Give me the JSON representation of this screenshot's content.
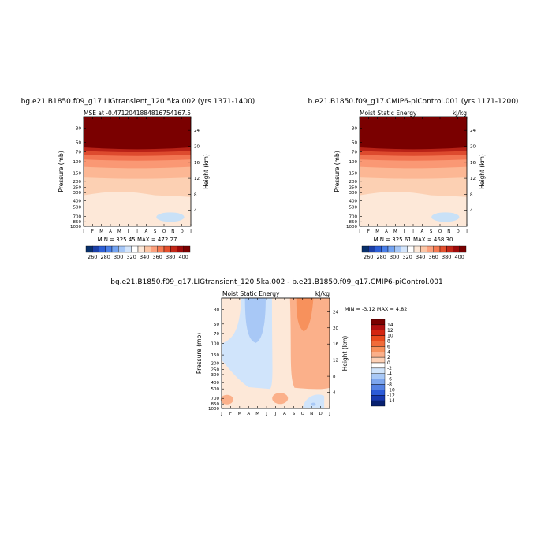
{
  "chart_data": [
    {
      "id": "lig",
      "type": "contour",
      "title": "bg.e21.B1850.f09_g17.LIGtransient_120.5ka.002 (yrs 1371-1400)",
      "subtitle_left": "MSE at -0.4712041884816754",
      "subtitle_right": "167.5",
      "ylabel": "Pressure (mb)",
      "y2label": "Height (km)",
      "stats": "MIN = 325.45 MAX = 472.27",
      "months": [
        "J",
        "F",
        "M",
        "A",
        "M",
        "J",
        "J",
        "A",
        "S",
        "O",
        "N",
        "D",
        "J"
      ],
      "pressure_ticks": [
        "30",
        "50",
        "70",
        "100",
        "150",
        "200",
        "250",
        "300",
        "400",
        "500",
        "700",
        "850",
        "1000"
      ],
      "height_ticks": [
        "24",
        "20",
        "16",
        "12",
        "8",
        "4"
      ],
      "ylim_mb": [
        1000,
        20
      ],
      "contour_levels_kJkg": [
        260,
        270,
        280,
        290,
        300,
        310,
        320,
        330,
        340,
        350,
        360,
        370,
        380,
        390,
        400
      ],
      "features": [
        {
          "label": "core values above 400 kJ/kg above ~60 mb",
          "value": 400
        },
        {
          "label": "340-350 kJ/kg band from ~300 mb to surface",
          "value": 340
        },
        {
          "label": "minimum pocket near 700 mb Sep-Nov",
          "value": 325.45
        }
      ],
      "colorbar": {
        "ticks": [
          "260",
          "280",
          "300",
          "320",
          "340",
          "360",
          "380",
          "400"
        ],
        "colors": [
          "#08306b",
          "#1b3fa8",
          "#2d5fd6",
          "#4a7fe8",
          "#74a4f2",
          "#a6c7f7",
          "#d4e5fb",
          "#ffffff",
          "#fde8d8",
          "#fcc6a6",
          "#fca17e",
          "#f67a52",
          "#e4502d",
          "#c22717",
          "#9d0a0a",
          "#7a0000"
        ]
      }
    },
    {
      "id": "ctrl",
      "type": "contour",
      "title": "b.e21.B1850.f09_g17.CMIP6-piControl.001 (yrs 1171-1200)",
      "subtitle_left": "Moist Static Energy",
      "subtitle_right": "kJ/kg",
      "ylabel": "Pressure (mb)",
      "y2label": "Height (km)",
      "stats": "MIN = 325.61 MAX = 468.30",
      "months": [
        "J",
        "F",
        "M",
        "A",
        "M",
        "J",
        "J",
        "A",
        "S",
        "O",
        "N",
        "D",
        "J"
      ],
      "pressure_ticks": [
        "30",
        "50",
        "70",
        "100",
        "150",
        "200",
        "250",
        "300",
        "400",
        "500",
        "700",
        "850",
        "1000"
      ],
      "height_ticks": [
        "24",
        "20",
        "16",
        "12",
        "8",
        "4"
      ],
      "ylim_mb": [
        1000,
        20
      ],
      "contour_levels_kJkg": [
        260,
        270,
        280,
        290,
        300,
        310,
        320,
        330,
        340,
        350,
        360,
        370,
        380,
        390,
        400
      ],
      "features": [
        {
          "label": "core values above 400 kJ/kg above ~60 mb",
          "value": 400
        },
        {
          "label": "340-350 kJ/kg band from ~300 mb to surface",
          "value": 340
        },
        {
          "label": "minimum pocket near 700 mb Aug-Nov",
          "value": 325.61
        }
      ],
      "colorbar": {
        "ticks": [
          "260",
          "280",
          "300",
          "320",
          "340",
          "360",
          "380",
          "400"
        ],
        "colors": [
          "#08306b",
          "#1b3fa8",
          "#2d5fd6",
          "#4a7fe8",
          "#74a4f2",
          "#a6c7f7",
          "#d4e5fb",
          "#ffffff",
          "#fde8d8",
          "#fcc6a6",
          "#fca17e",
          "#f67a52",
          "#e4502d",
          "#c22717",
          "#9d0a0a",
          "#7a0000"
        ]
      }
    },
    {
      "id": "diff",
      "type": "contour",
      "title": "bg.e21.B1850.f09_g17.LIGtransient_120.5ka.002 - b.e21.B1850.f09_g17.CMIP6-piControl.001",
      "subtitle_left": "Moist Static Energy",
      "subtitle_right": "kJ/kg",
      "ylabel": "Pressure (mb)",
      "y2label": "Height (km)",
      "stats": "MIN =   -3.12 MAX =    4.82",
      "months": [
        "J",
        "F",
        "M",
        "A",
        "M",
        "J",
        "J",
        "A",
        "S",
        "O",
        "N",
        "D",
        "J"
      ],
      "pressure_ticks": [
        "30",
        "50",
        "70",
        "100",
        "150",
        "200",
        "250",
        "300",
        "400",
        "500",
        "700",
        "850",
        "1000"
      ],
      "height_ticks": [
        "24",
        "20",
        "16",
        "12",
        "8",
        "4"
      ],
      "ylim_mb": [
        1000,
        20
      ],
      "contour_levels_kJkg": [
        -14,
        -12,
        -10,
        -8,
        -6,
        -4,
        -2,
        0,
        2,
        4,
        6,
        8,
        10,
        12,
        14
      ],
      "features": [
        {
          "label": "negative anomaly Mar-Apr upper levels",
          "value": -2
        },
        {
          "label": "positive anomaly Sep-Dec upper levels",
          "value": 2
        },
        {
          "label": "peak positive Oct near 50 mb",
          "value": 4
        },
        {
          "label": "negative pocket Nov near 800 mb",
          "value": -2
        }
      ],
      "colorbar": {
        "ticks": [
          "14",
          "12",
          "10",
          "8",
          "6",
          "4",
          "2",
          "0",
          "-2",
          "-4",
          "-6",
          "-8",
          "-10",
          "-12",
          "-14"
        ],
        "colors": [
          "#7a0000",
          "#b01010",
          "#d42510",
          "#e94a1c",
          "#f06c3a",
          "#f7915c",
          "#fbb08a",
          "#fdd1b6",
          "#ffffff",
          "#d0e4fb",
          "#a8c8f6",
          "#7da6ee",
          "#5582e3",
          "#2c5bd8",
          "#1739b0",
          "#08206f"
        ]
      }
    }
  ]
}
